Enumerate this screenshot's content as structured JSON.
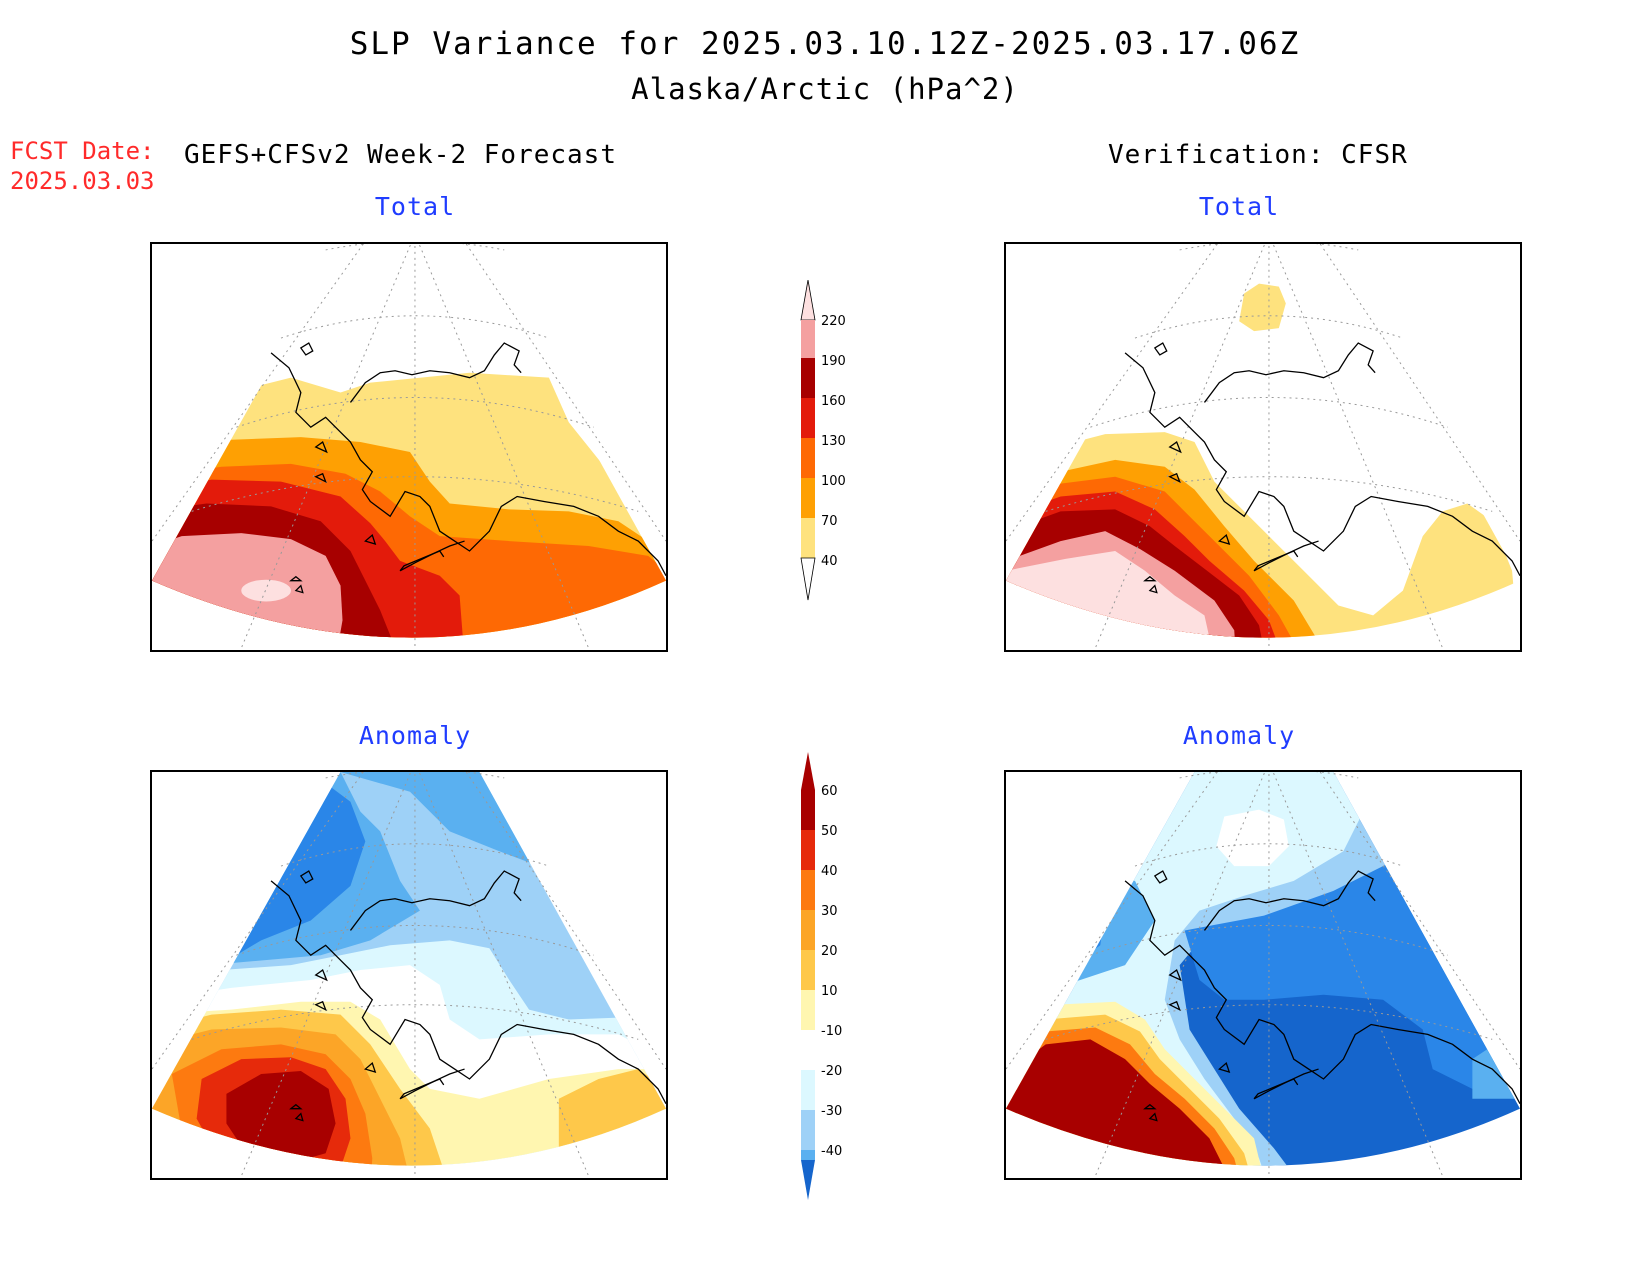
{
  "title": {
    "line1": "SLP Variance for 2025.03.10.12Z-2025.03.17.06Z",
    "line2": "Alaska/Arctic (hPa^2)"
  },
  "fcst": {
    "label": "FCST Date:",
    "date": "2025.03.03"
  },
  "left_header": "GEFS+CFSv2 Week-2 Forecast",
  "right_header": "Verification: CFSR",
  "panels": {
    "fcst_total": "Total",
    "verif_total": "Total",
    "fcst_anomaly": "Anomaly",
    "verif_anomaly": "Anomaly"
  },
  "colors": {
    "c40": "#fee27e",
    "c70": "#fea003",
    "c100": "#fe6904",
    "c130": "#e31b0b",
    "c160": "#a70000",
    "c190": "#f4a0a0",
    "c220": "#fde0e0",
    "a10": "#fff6b0",
    "a20": "#fec84a",
    "a30": "#fca527",
    "a40": "#fd7a10",
    "a50": "#e62a0b",
    "a60": "#a80000",
    "n10": "#dcf8ff",
    "n20": "#9ed1f7",
    "n30": "#5ab0f0",
    "n40": "#2a86e8",
    "n50": "#1565cc"
  },
  "colorbar_total": {
    "ticks": [
      "40",
      "70",
      "100",
      "130",
      "160",
      "190",
      "220"
    ]
  },
  "colorbar_anomaly": {
    "ticks": [
      "-40",
      "-30",
      "-20",
      "-10",
      "10",
      "20",
      "30",
      "40",
      "50",
      "60"
    ]
  }
}
